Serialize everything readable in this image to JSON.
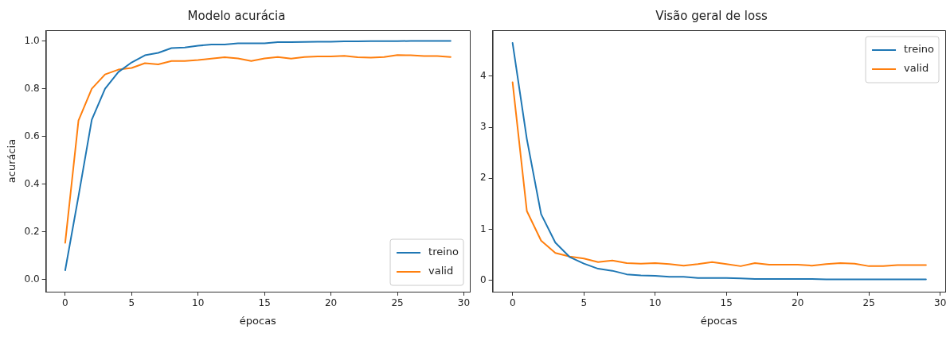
{
  "chart_data": [
    {
      "type": "line",
      "title": "Modelo acurácia",
      "xlabel": "épocas",
      "ylabel": "acurácia",
      "x": [
        0,
        1,
        2,
        3,
        4,
        5,
        6,
        7,
        8,
        9,
        10,
        11,
        12,
        13,
        14,
        15,
        16,
        17,
        18,
        19,
        20,
        21,
        22,
        23,
        24,
        25,
        26,
        27,
        28,
        29
      ],
      "series": [
        {
          "name": "treino",
          "color": "#1f77b4",
          "values": [
            0.04,
            0.35,
            0.67,
            0.8,
            0.87,
            0.91,
            0.94,
            0.95,
            0.97,
            0.973,
            0.98,
            0.985,
            0.985,
            0.99,
            0.99,
            0.99,
            0.995,
            0.995,
            0.996,
            0.997,
            0.997,
            0.998,
            0.998,
            0.999,
            0.999,
            0.999,
            1.0,
            1.0,
            1.0,
            1.0
          ]
        },
        {
          "name": "valid",
          "color": "#ff7f0e",
          "values": [
            0.155,
            0.667,
            0.8,
            0.86,
            0.88,
            0.887,
            0.907,
            0.902,
            0.916,
            0.916,
            0.92,
            0.926,
            0.932,
            0.927,
            0.916,
            0.927,
            0.933,
            0.926,
            0.933,
            0.935,
            0.935,
            0.938,
            0.932,
            0.93,
            0.933,
            0.941,
            0.94,
            0.937,
            0.937,
            0.933
          ]
        }
      ],
      "xlim": [
        -1.45,
        30.45
      ],
      "xticks": [
        0,
        5,
        10,
        15,
        20,
        25,
        30
      ],
      "ylim": [
        -0.05,
        1.045
      ],
      "yticks": [
        {
          "value": 0,
          "label": "0.0"
        },
        {
          "value": 0.2,
          "label": "0.2"
        },
        {
          "value": 0.4,
          "label": "0.4"
        },
        {
          "value": 0.6,
          "label": "0.6"
        },
        {
          "value": 0.8,
          "label": "0.8"
        },
        {
          "value": 1,
          "label": "1.0"
        }
      ],
      "grid": false,
      "legend": "bottom right",
      "marker": "none",
      "line_style": "solid"
    },
    {
      "type": "line",
      "title": "Visão geral de loss",
      "xlabel": "épocas",
      "x": [
        0,
        1,
        2,
        3,
        4,
        5,
        6,
        7,
        8,
        9,
        10,
        11,
        12,
        13,
        14,
        15,
        16,
        17,
        18,
        19,
        20,
        21,
        22,
        23,
        24,
        25,
        26,
        27,
        28,
        29
      ],
      "series": [
        {
          "name": "treino",
          "color": "#1f77b4",
          "values": [
            4.65,
            2.77,
            1.3,
            0.74,
            0.46,
            0.33,
            0.23,
            0.19,
            0.12,
            0.1,
            0.09,
            0.07,
            0.07,
            0.05,
            0.05,
            0.05,
            0.04,
            0.03,
            0.03,
            0.03,
            0.03,
            0.03,
            0.02,
            0.02,
            0.02,
            0.02,
            0.02,
            0.02,
            0.02,
            0.02
          ]
        },
        {
          "name": "valid",
          "color": "#ff7f0e",
          "values": [
            3.88,
            1.36,
            0.78,
            0.54,
            0.47,
            0.43,
            0.36,
            0.39,
            0.34,
            0.33,
            0.34,
            0.32,
            0.29,
            0.32,
            0.36,
            0.32,
            0.28,
            0.34,
            0.31,
            0.31,
            0.31,
            0.29,
            0.32,
            0.34,
            0.33,
            0.28,
            0.28,
            0.3,
            0.3,
            0.3
          ]
        }
      ],
      "xlim": [
        -1.4,
        30.35
      ],
      "xticks": [
        0,
        5,
        10,
        15,
        20,
        25,
        30
      ],
      "ylim": [
        -0.22,
        4.9
      ],
      "yticks": [
        0,
        1,
        2,
        3,
        4
      ],
      "grid": false,
      "legend": "top right",
      "marker": "none",
      "line_style": "solid"
    }
  ]
}
